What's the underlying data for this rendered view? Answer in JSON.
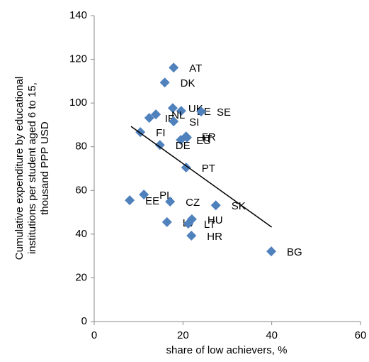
{
  "chart_data": {
    "type": "scatter",
    "xlabel": "share of low achievers, %",
    "ylabel": [
      "Cumulative expenditure by educational",
      "institutions per student aged 6 to 15,",
      "thousand PPP USD"
    ],
    "xlim": [
      0,
      60
    ],
    "xticks": [
      0,
      20,
      40,
      60
    ],
    "ylim": [
      0,
      140
    ],
    "yticks": [
      0,
      20,
      40,
      60,
      80,
      100,
      120,
      140
    ],
    "grid": false,
    "color": "#4f81bd",
    "labels": [
      "AT",
      "DK",
      "UK",
      "BE",
      "SE",
      "NL",
      "IE",
      "SI",
      "FI",
      "IT",
      "FR",
      "ES",
      "DE",
      "PT",
      "PL",
      "EE",
      "CZ",
      "SK",
      "LV",
      "HU",
      "LT",
      "HR",
      "BG"
    ],
    "x": [
      17.9,
      15.9,
      17.7,
      19.6,
      24.1,
      13.9,
      12.4,
      17.9,
      10.4,
      20.9,
      20.7,
      19.5,
      14.8,
      20.7,
      11.2,
      8.0,
      17.1,
      27.4,
      16.4,
      22.0,
      21.2,
      21.9,
      39.9
    ],
    "y": [
      116.2,
      109.4,
      97.7,
      96.4,
      96.1,
      94.8,
      93.2,
      91.6,
      86.7,
      84.2,
      84.7,
      83.1,
      80.8,
      70.5,
      58.1,
      55.5,
      54.9,
      53.2,
      45.5,
      46.8,
      44.8,
      39.3,
      32.1
    ],
    "trendline": {
      "color": "#000000",
      "x": [
        8.3,
        40
      ],
      "y": [
        89.3,
        43.2
      ]
    }
  }
}
